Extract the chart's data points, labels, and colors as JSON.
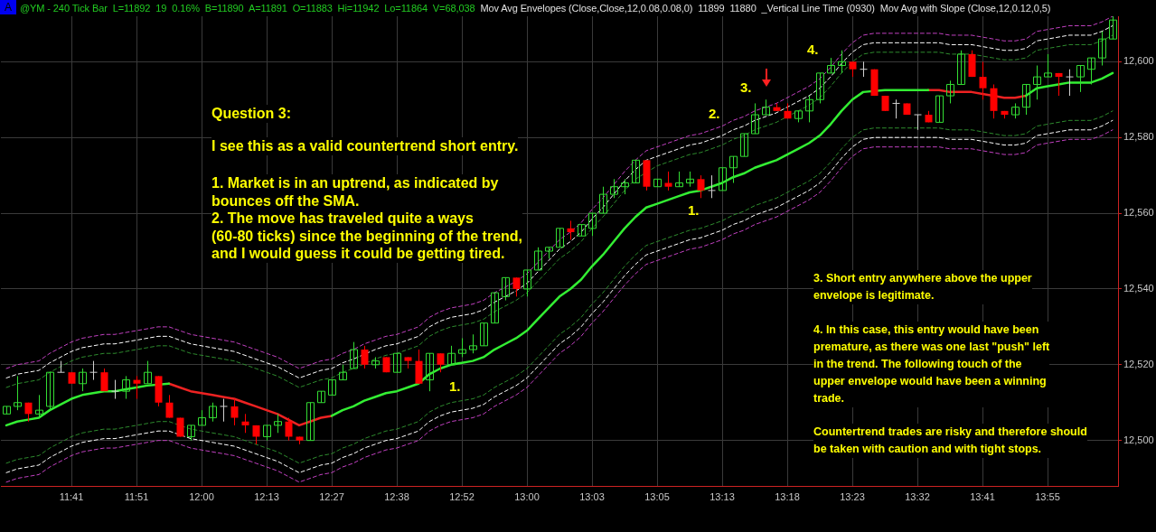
{
  "chart_data": {
    "type": "candlestick",
    "title": "@YM - 240 Tick Bar  L=11892  19  0.16%  B=11890  A=11891  O=11883  Hi=11942  Lo=11864  V=68,038",
    "subtitle": "Mov Avg Envelopes (Close,Close,12,0.08,0.08,0)  11899  11880  _Vertical Line Time (0930)  Mov Avg with Slope (Close,12,0.12,0,5)",
    "annotations": [
      "A",
      "Question 3:",
      "I see this as a valid countertrend short entry.",
      "1. Market is in an uptrend, as indicated by\nbounces off the SMA.\n2. The move has traveled quite a ways\n(60-80 ticks) since the beginning of the trend,\nand I would guess it could be getting tired.",
      "3. Short entry anywhere above the upper\nenvelope is legitimate.",
      "4. In this case, this entry would have been\npremature, as there was one last \"push\" left\nin the trend. The following touch of the\nupper envelope would have been a winning\ntrade.",
      "Countertrend trades are risky and therefore should\nbe taken with caution and with tight stops.",
      "1.",
      "1.",
      "2.",
      "3.",
      "4."
    ],
    "categories": [
      null,
      null,
      null,
      null,
      null,
      null,
      "11:41",
      null,
      null,
      null,
      null,
      null,
      "11:51",
      null,
      null,
      null,
      null,
      null,
      "12:00",
      null,
      null,
      null,
      null,
      null,
      "12:13",
      null,
      null,
      null,
      null,
      null,
      "12:27",
      null,
      null,
      null,
      null,
      null,
      "12:38",
      null,
      null,
      null,
      null,
      null,
      "12:52",
      null,
      null,
      null,
      null,
      null,
      "13:00",
      null,
      null,
      null,
      null,
      null,
      "13:03",
      null,
      null,
      null,
      null,
      null,
      "13:05",
      null,
      null,
      null,
      null,
      null,
      "13:13",
      null,
      null,
      null,
      null,
      null,
      "13:18",
      null,
      null,
      null,
      null,
      null,
      "13:23",
      null,
      null,
      null,
      null,
      null,
      "13:32",
      null,
      null,
      null,
      null,
      null,
      "13:41",
      null,
      null,
      null,
      null,
      null,
      "13:55",
      null,
      null,
      null,
      null,
      null,
      null
    ],
    "ohlc": [
      [
        12507,
        12509,
        12507,
        12509
      ],
      [
        12509,
        12517,
        12508,
        12510
      ],
      [
        12510,
        12510,
        12505,
        12507
      ],
      [
        12507,
        12512,
        12506,
        12508
      ],
      [
        12509,
        12518,
        12508,
        12518
      ],
      [
        12518,
        12521,
        12518,
        12518
      ],
      [
        12518,
        12518,
        12515,
        12515
      ],
      [
        12515,
        12519,
        12513,
        12518
      ],
      [
        12518,
        12521,
        12516,
        12518
      ],
      [
        12518,
        12519,
        12513,
        12513
      ],
      [
        12513,
        12516,
        12511,
        12513
      ],
      [
        12513,
        12517,
        12511,
        12516
      ],
      [
        12516,
        12517,
        12511,
        12515
      ],
      [
        12515,
        12521,
        12515,
        12518
      ],
      [
        12517,
        12517,
        12509,
        12510
      ],
      [
        12510,
        12512,
        12506,
        12506
      ],
      [
        12506,
        12506,
        12501,
        12501
      ],
      [
        12501,
        12504,
        12500,
        12504
      ],
      [
        12504,
        12508,
        12504,
        12506
      ],
      [
        12506,
        12510,
        12505,
        12509
      ],
      [
        12509,
        12511,
        12505,
        12509
      ],
      [
        12509,
        12511,
        12504,
        12506
      ],
      [
        12505,
        12507,
        12502,
        12504
      ],
      [
        12504,
        12504,
        12499,
        12501
      ],
      [
        12501,
        12504,
        12500,
        12504
      ],
      [
        12504,
        12507,
        12502,
        12505
      ],
      [
        12505,
        12506,
        12500,
        12501
      ],
      [
        12501,
        12501,
        12499,
        12500
      ],
      [
        12500,
        12510,
        12500,
        12510
      ],
      [
        12510,
        12513,
        12510,
        12513
      ],
      [
        12512,
        12516,
        12512,
        12516
      ],
      [
        12516,
        12520,
        12516,
        12518
      ],
      [
        12519,
        12526,
        12519,
        12524
      ],
      [
        12524,
        12525,
        12519,
        12520
      ],
      [
        12520,
        12522,
        12519,
        12521
      ],
      [
        12522,
        12522,
        12518,
        12518
      ],
      [
        12518,
        12523,
        12518,
        12523
      ],
      [
        12522,
        12522,
        12519,
        12521
      ],
      [
        12521,
        12524,
        12515,
        12515
      ],
      [
        12516,
        12523,
        12513,
        12523
      ],
      [
        12523,
        12523,
        12518,
        12520
      ],
      [
        12520,
        12525,
        12520,
        12523
      ],
      [
        12523,
        12527,
        12522,
        12524
      ],
      [
        12524,
        12528,
        12523,
        12525
      ],
      [
        12525,
        12531,
        12525,
        12531
      ],
      [
        12531,
        12539,
        12531,
        12539
      ],
      [
        12538,
        12543,
        12537,
        12543
      ],
      [
        12543,
        12543,
        12538,
        12540
      ],
      [
        12540,
        12545,
        12538,
        12545
      ],
      [
        12545,
        12551,
        12545,
        12550
      ],
      [
        12550,
        12551,
        12548,
        12551
      ],
      [
        12551,
        12556,
        12551,
        12556
      ],
      [
        12556,
        12558,
        12553,
        12555
      ],
      [
        12554,
        12557,
        12554,
        12557
      ],
      [
        12556,
        12560,
        12554,
        12560
      ],
      [
        12560,
        12567,
        12560,
        12565
      ],
      [
        12565,
        12569,
        12564,
        12567
      ],
      [
        12567,
        12569,
        12565,
        12568
      ],
      [
        12568,
        12574,
        12568,
        12574
      ],
      [
        12574,
        12574,
        12566,
        12567
      ],
      [
        12567,
        12569,
        12567,
        12569
      ],
      [
        12568,
        12571,
        12566,
        12567
      ],
      [
        12567,
        12571,
        12567,
        12568
      ],
      [
        12568,
        12571,
        12567,
        12569
      ],
      [
        12569,
        12570,
        12564,
        12566
      ],
      [
        12566,
        12570,
        12564,
        12566
      ],
      [
        12566,
        12572,
        12566,
        12572
      ],
      [
        12572,
        12575,
        12568,
        12575
      ],
      [
        12575,
        12581,
        12575,
        12581
      ],
      [
        12581,
        12589,
        12581,
        12586
      ],
      [
        12586,
        12590,
        12586,
        12588
      ],
      [
        12588,
        12589,
        12587,
        12587
      ],
      [
        12587,
        12589,
        12585,
        12585
      ],
      [
        12585,
        12587,
        12584,
        12587
      ],
      [
        12587,
        12591,
        12584,
        12590
      ],
      [
        12590,
        12597,
        12589,
        12597
      ],
      [
        12597,
        12601,
        12597,
        12599
      ],
      [
        12599,
        12603,
        12597,
        12600
      ],
      [
        12600,
        12600,
        12596,
        12598
      ],
      [
        12598,
        12600,
        12596,
        12598
      ],
      [
        12598,
        12598,
        12591,
        12591
      ],
      [
        12591,
        12591,
        12587,
        12587
      ],
      [
        12589,
        12590,
        12585,
        12589
      ],
      [
        12589,
        12589,
        12586,
        12586
      ],
      [
        12586,
        12586,
        12582,
        12586
      ],
      [
        12586,
        12587,
        12584,
        12584
      ],
      [
        12584,
        12591,
        12584,
        12591
      ],
      [
        12591,
        12595,
        12589,
        12594
      ],
      [
        12594,
        12603,
        12594,
        12602
      ],
      [
        12602,
        12603,
        12596,
        12596
      ],
      [
        12596,
        12600,
        12590,
        12593
      ],
      [
        12593,
        12594,
        12585,
        12587
      ],
      [
        12587,
        12587,
        12585,
        12586
      ],
      [
        12586,
        12589,
        12585,
        12588
      ],
      [
        12588,
        12594,
        12586,
        12594
      ],
      [
        12594,
        12599,
        12590,
        12596
      ],
      [
        12596,
        12602,
        12596,
        12597
      ],
      [
        12597,
        12597,
        12591,
        12596
      ],
      [
        12596,
        12598,
        12591,
        12596
      ],
      [
        12596,
        12599,
        12592,
        12599
      ],
      [
        12598,
        12601,
        12594,
        12601
      ],
      [
        12601,
        12608,
        12599,
        12606
      ],
      [
        12606,
        12612,
        12606,
        12611
      ]
    ],
    "colors": [
      "#33dd33",
      "#33dd33",
      "#ff0000",
      "#33dd33",
      "#33dd33",
      "#d0d0d0",
      "#ff0000",
      "#33dd33",
      "#d0d0d0",
      "#ff0000",
      "#d0d0d0",
      "#33dd33",
      "#ff0000",
      "#33dd33",
      "#ff0000",
      "#ff0000",
      "#ff0000",
      "#33dd33",
      "#33dd33",
      "#33dd33",
      "#d0d0d0",
      "#ff0000",
      "#ff0000",
      "#ff0000",
      "#33dd33",
      "#33dd33",
      "#ff0000",
      "#ff0000",
      "#33dd33",
      "#33dd33",
      "#33dd33",
      "#33dd33",
      "#33dd33",
      "#ff0000",
      "#33dd33",
      "#ff0000",
      "#33dd33",
      "#ff0000",
      "#ff0000",
      "#33dd33",
      "#ff0000",
      "#33dd33",
      "#33dd33",
      "#33dd33",
      "#33dd33",
      "#33dd33",
      "#33dd33",
      "#ff0000",
      "#33dd33",
      "#33dd33",
      "#33dd33",
      "#33dd33",
      "#ff0000",
      "#33dd33",
      "#33dd33",
      "#33dd33",
      "#33dd33",
      "#33dd33",
      "#33dd33",
      "#ff0000",
      "#33dd33",
      "#ff0000",
      "#33dd33",
      "#33dd33",
      "#ff0000",
      "#d0d0d0",
      "#33dd33",
      "#33dd33",
      "#33dd33",
      "#33dd33",
      "#33dd33",
      "#ff0000",
      "#ff0000",
      "#33dd33",
      "#33dd33",
      "#33dd33",
      "#33dd33",
      "#33dd33",
      "#ff0000",
      "#d0d0d0",
      "#ff0000",
      "#ff0000",
      "#d0d0d0",
      "#ff0000",
      "#d0d0d0",
      "#ff0000",
      "#33dd33",
      "#33dd33",
      "#33dd33",
      "#ff0000",
      "#ff0000",
      "#ff0000",
      "#ff0000",
      "#33dd33",
      "#33dd33",
      "#33dd33",
      "#33dd33",
      "#ff0000",
      "#d0d0d0",
      "#33dd33",
      "#33dd33",
      "#33dd33",
      "#33dd33"
    ],
    "series": [
      {
        "type": "line",
        "color": "#c040c0",
        "line_style": "dashed",
        "values": [
          12519,
          12520,
          12520.5,
          12521,
          12523,
          12524.5,
          12526,
          12527,
          12527.5,
          12528,
          12528,
          12528.5,
          12529,
          12529.5,
          12530,
          12530,
          12529,
          12528,
          12527.5,
          12527,
          12526.5,
          12526,
          12525,
          12524,
          12523,
          12522,
          12520.5,
          12519,
          12520,
          12521,
          12521.5,
          12523,
          12524,
          12525.5,
          12526.5,
          12527.5,
          12528,
          12529,
          12530,
          12532.5,
          12534,
          12535,
          12535.5,
          12536,
          12537,
          12539,
          12540.5,
          12542,
          12544,
          12547,
          12550,
          12553,
          12555,
          12557.5,
          12561,
          12564,
          12567.5,
          12571,
          12574,
          12576.5,
          12577.5,
          12578.5,
          12579.5,
          12580.5,
          12581,
          12582,
          12583,
          12584.5,
          12585.5,
          12587,
          12588,
          12589,
          12590.5,
          12592,
          12593.5,
          12595.5,
          12598.5,
          12602,
          12605,
          12607,
          12607.5,
          12607.5,
          12607.5,
          12607.5,
          12607.5,
          12607.5,
          12607.5,
          12607,
          12607,
          12607,
          12606.5,
          12606,
          12605.5,
          12605.5,
          12606,
          12608,
          12608.5,
          12609,
          12609.5,
          12609.5,
          12609.5,
          12610.5,
          12612
        ]
      },
      {
        "type": "line",
        "color": "#ffffff",
        "line_style": "dashed",
        "values": [
          12516.5,
          12517.5,
          12518,
          12518.5,
          12520.5,
          12522,
          12523.5,
          12524.5,
          12525,
          12525.5,
          12525.5,
          12526,
          12526.5,
          12527,
          12527.5,
          12527.5,
          12526.5,
          12525.5,
          12525,
          12524.5,
          12524,
          12523.5,
          12522.5,
          12521.5,
          12520.5,
          12519.5,
          12518,
          12516.5,
          12517.5,
          12518.5,
          12519,
          12520.5,
          12521.5,
          null,
          12524,
          12525,
          12525.5,
          12526.5,
          12527.5,
          12530,
          12531.5,
          12532.5,
          12533,
          12533.5,
          12534.5,
          12536.5,
          12538,
          12539.5,
          12541.5,
          12544.5,
          12547.5,
          12550.5,
          12552.5,
          12555,
          12558.5,
          12561.5,
          12565,
          12568.5,
          12571.5,
          12574,
          12575,
          12576,
          12577,
          12578,
          12578.5,
          12579.5,
          12580.5,
          12582,
          12583,
          12584.5,
          12585.5,
          12586.5,
          12588,
          12589.5,
          12591,
          12593,
          12596,
          12599.5,
          12602.5,
          12604.5,
          12605,
          12605,
          12605,
          12605,
          12605,
          12605,
          12605,
          12604.5,
          12604.5,
          12604.5,
          12604,
          12603.5,
          12603,
          12603,
          12603.5,
          12605.5,
          12606,
          12606.5,
          12607,
          12607,
          12607,
          12608,
          12609.5
        ]
      },
      {
        "type": "line",
        "color": "#2e8b2e",
        "line_style": "dashed",
        "values": [
          12514,
          12515,
          12515.5,
          12516,
          12518,
          12519.5,
          12521,
          12522,
          12522.5,
          12523,
          12523,
          12523.5,
          12524,
          12524.5,
          12525,
          12525,
          12524,
          12523,
          12522.5,
          12522,
          12521.5,
          12521,
          12520,
          12519,
          12518,
          12517,
          12515.5,
          12514,
          12515,
          12516,
          12516.5,
          12518,
          12519,
          null,
          12521.5,
          12522.5,
          12523,
          12524,
          12525,
          12527.5,
          12529,
          12530,
          12530.5,
          12531,
          12532,
          12534,
          12535.5,
          12537,
          12539,
          12542,
          12545,
          12548,
          12550,
          12552.5,
          12556,
          12559,
          12562.5,
          12566,
          12569,
          null,
          12572.5,
          12573.5,
          12574.5,
          12575.5,
          12576,
          12577,
          12578,
          12579.5,
          12580.5,
          12582,
          12583,
          12584,
          12585.5,
          12587,
          12588.5,
          12590.5,
          12593.5,
          12597,
          12600,
          12602,
          12602.5,
          12602.5,
          12602.5,
          12602.5,
          12602.5,
          12602.5,
          12602.5,
          12602,
          12602,
          12602,
          12601.5,
          12601,
          12600.5,
          12600.5,
          12601,
          12603,
          12603.5,
          12604,
          12604.5,
          12604.5,
          12604.5,
          12605.5,
          12607
        ]
      },
      {
        "type": "line",
        "color": "#2e8b2e",
        "line_style": "dashed",
        "values": [
          12494,
          12495,
          12495.5,
          12496,
          12498,
          12499.5,
          12501,
          12502,
          12502.5,
          12503,
          12503,
          12503.5,
          12504,
          12504.5,
          12505,
          12505,
          12504,
          12503,
          12502.5,
          12502,
          12501.5,
          12501,
          12500,
          12499,
          12498,
          12497,
          12495.5,
          12494,
          12495,
          12496,
          12496.5,
          12498,
          12499,
          12500.5,
          12501.5,
          12502.5,
          12503,
          12504,
          12505,
          12507.5,
          12509,
          12510,
          12510.5,
          12511,
          12512,
          12514,
          12515.5,
          12517,
          12519,
          12522,
          12525,
          12528,
          12530,
          12532.5,
          12536,
          12539,
          12542.5,
          12546,
          12549,
          12551.5,
          12552.5,
          12553.5,
          12554.5,
          12555.5,
          12556,
          12557,
          12558,
          12559.5,
          12560.5,
          12562,
          12563,
          12564,
          12565.5,
          12567,
          12568.5,
          12570.5,
          12573.5,
          12577,
          12580,
          12582,
          12582.5,
          12582.5,
          12582.5,
          12582.5,
          12582.5,
          12582.5,
          12582.5,
          12582,
          12582,
          12582,
          12581.5,
          12581,
          12580.5,
          12580.5,
          12581,
          12583,
          12583.5,
          12584,
          12584.5,
          12584.5,
          12584.5,
          12585.5,
          12587
        ]
      },
      {
        "type": "line",
        "color": "#ffffff",
        "line_style": "dashed",
        "values": [
          12491.5,
          12492.5,
          12493,
          12493.5,
          12495.5,
          12497,
          12498.5,
          12499.5,
          12500,
          12500.5,
          12500.5,
          12501,
          12501.5,
          12502,
          12502.5,
          12502.5,
          null,
          12500.5,
          12500,
          12499.5,
          12499,
          12498.5,
          12497.5,
          12496.5,
          12495.5,
          12494.5,
          12493,
          12491.5,
          12492.5,
          12493.5,
          12494,
          12495.5,
          12496.5,
          12498,
          12499,
          12500,
          12500.5,
          12501.5,
          12502.5,
          12505,
          12506.5,
          12507.5,
          12508,
          12508.5,
          12509.5,
          12511.5,
          12513,
          12514.5,
          12516.5,
          12519.5,
          12522.5,
          12525.5,
          12527.5,
          12530,
          12533.5,
          12536.5,
          12540,
          12543.5,
          12546.5,
          12549,
          12550,
          12551,
          12552,
          12553,
          12553.5,
          12554.5,
          12555.5,
          12557,
          12558,
          12559.5,
          12560.5,
          12561.5,
          12563,
          12564.5,
          12566,
          12568,
          12571,
          12574.5,
          12577.5,
          12579.5,
          12580,
          12580,
          12580,
          12580,
          12580,
          12580,
          12580,
          12579.5,
          12579.5,
          12579.5,
          12579,
          12578.5,
          12578,
          12578,
          12578.5,
          12580.5,
          12581,
          12581.5,
          12582,
          12582,
          12582,
          12583,
          12584.5
        ]
      },
      {
        "type": "line",
        "color": "#c040c0",
        "line_style": "dashed",
        "values": [
          12489,
          12490,
          12490.5,
          12491,
          12493,
          12494.5,
          12496,
          12497,
          12497.5,
          12498,
          12498,
          12498.5,
          12499,
          12499.5,
          12500,
          12500,
          12499,
          12498,
          12497.5,
          12497,
          12496.5,
          12496,
          12495,
          12494,
          12493,
          12492,
          12490.5,
          12489,
          12490,
          12491,
          12491.5,
          12493,
          12494,
          12495.5,
          12496.5,
          12497.5,
          12498,
          12499,
          12500,
          12502.5,
          12504,
          12505,
          12505.5,
          12506,
          12507,
          12509,
          12510.5,
          12512,
          12514,
          12517,
          12520,
          12523,
          12525,
          12527.5,
          12531,
          12534,
          12537.5,
          12541,
          12544,
          12546.5,
          12547.5,
          12548.5,
          12549.5,
          12550.5,
          12551,
          12552,
          12553,
          12554.5,
          12555.5,
          12557,
          12558,
          12559,
          12560.5,
          12562,
          12563.5,
          12565.5,
          12568.5,
          12572,
          12575,
          12577,
          12577.5,
          12577.5,
          12577.5,
          12577.5,
          12577.5,
          12577.5,
          12577.5,
          12577,
          12577,
          12577,
          12576.5,
          12576,
          12575.5,
          12575.5,
          12576,
          12578,
          12578.5,
          12579,
          12579.5,
          12579.5,
          12579.5,
          12580.5,
          12582
        ]
      },
      {
        "type": "line",
        "color": "#33ee33",
        "line_style": "solid",
        "values": [
          12504,
          12505,
          12505.5,
          12506,
          12508,
          12509.5,
          12511,
          12512,
          12512.5,
          12513,
          12513,
          12513.5,
          12514,
          12514.5,
          null,
          12515,
          null,
          null,
          null,
          null,
          null,
          null,
          null,
          null,
          null,
          null,
          null,
          null,
          null,
          null,
          12506.5,
          12508,
          12509,
          12510.5,
          12511.5,
          12512.5,
          12513,
          12514,
          12515,
          12517.5,
          12519,
          12520,
          12520.5,
          12521,
          12522,
          12524,
          12525.5,
          12527,
          12529,
          12532,
          12535,
          12538,
          12540,
          12542.5,
          12546,
          12549,
          12552.5,
          12556,
          12559,
          12561.5,
          12562.5,
          12563.5,
          12564.5,
          12565.5,
          12566,
          12567,
          12568,
          12569.5,
          12570.5,
          12572,
          12573,
          12574,
          12575.5,
          12577,
          12578.5,
          12580.5,
          12583.5,
          12587,
          12590,
          12592,
          null,
          12592.5,
          12592.5,
          12592.5,
          12592.5,
          12592.5,
          null,
          null,
          null,
          null,
          null,
          null,
          null,
          null,
          12591,
          12593,
          12593.5,
          12594,
          12594.5,
          12594.5,
          12594.5,
          12595.5,
          12597
        ]
      },
      {
        "type": "line",
        "color": "#ee2222",
        "line_style": "solid",
        "values": [
          null,
          null,
          null,
          null,
          null,
          null,
          null,
          null,
          null,
          null,
          null,
          null,
          null,
          null,
          null,
          12515,
          12514,
          12513,
          12512.5,
          12512,
          12511.5,
          12511,
          12510,
          12509,
          12508,
          12507,
          12505.5,
          12504,
          12505,
          12506,
          12506.5,
          null,
          null,
          null,
          null,
          null,
          null,
          null,
          null,
          null,
          null,
          null,
          null,
          null,
          null,
          null,
          null,
          null,
          null,
          null,
          null,
          null,
          null,
          null,
          null,
          null,
          null,
          null,
          null,
          null,
          null,
          null,
          null,
          null,
          null,
          null,
          null,
          null,
          null,
          null,
          null,
          null,
          null,
          null,
          null,
          null,
          null,
          null,
          null,
          null,
          null,
          null,
          null,
          null,
          null,
          12592.5,
          12592.5,
          12592,
          12592,
          12592,
          12591.5,
          12591,
          12590.5,
          12590.5,
          12591,
          null,
          null,
          null,
          null,
          null,
          null,
          null,
          null
        ]
      }
    ],
    "ylim": [
      12488,
      12612
    ],
    "yticks": [
      {
        "value": 12500,
        "label": "12,500"
      },
      {
        "value": 12520,
        "label": "12,520"
      },
      {
        "value": 12540,
        "label": "12,540"
      },
      {
        "value": 12560,
        "label": "12,560"
      },
      {
        "value": 12580,
        "label": "12,580"
      },
      {
        "value": 12600,
        "label": "12,600"
      }
    ],
    "grid": true,
    "marker": "none"
  }
}
